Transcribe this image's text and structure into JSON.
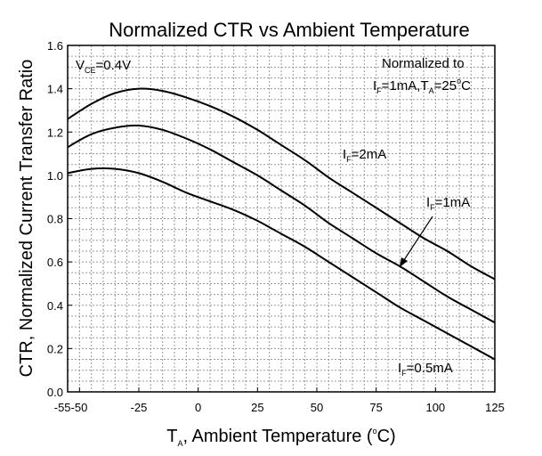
{
  "chart_data": {
    "type": "line",
    "title": "Normalized CTR vs Ambient Temperature",
    "xlabel": {
      "pre": "T",
      "sub": "A",
      "mid": ", Ambient Temperature (",
      "sup": "o",
      "post": "C)"
    },
    "ylabel": "CTR, Normalized Current Transfer Ratio",
    "xlim": [
      -55,
      125
    ],
    "ylim": [
      0,
      1.6
    ],
    "x_ticks": [
      -50,
      -25,
      0,
      25,
      50,
      75,
      100,
      125
    ],
    "x_tick_labels": [
      "-55-50",
      "-25",
      "0",
      "25",
      "50",
      "75",
      "100",
      "125"
    ],
    "y_ticks": [
      0,
      0.2,
      0.4,
      0.6,
      0.8,
      1.0,
      1.2,
      1.4,
      1.6
    ],
    "y_tick_labels": [
      "0.0",
      "0.2",
      "0.4",
      "0.6",
      "0.8",
      "1.0",
      "1.2",
      "1.4",
      "1.6"
    ],
    "grid": true,
    "annotations": {
      "vce": {
        "pre": "V",
        "sub": "CE",
        "post": "=0.4V"
      },
      "norm_line1": "Normalized to",
      "norm_line2": {
        "p1": "I",
        "s1": "F",
        "p2": "=1mA,T",
        "s2": "A",
        "p3": "=25",
        "sup": "o",
        "p4": "C"
      }
    },
    "series": [
      {
        "name": "I_F=2mA",
        "label": {
          "pre": "I",
          "sub": "F",
          "post": "=2mA"
        },
        "x": [
          -55,
          -45,
          -35,
          -25,
          -15,
          -5,
          5,
          15,
          25,
          35,
          45,
          55,
          65,
          75,
          85,
          95,
          105,
          115,
          125
        ],
        "values": [
          1.26,
          1.33,
          1.38,
          1.4,
          1.39,
          1.36,
          1.32,
          1.27,
          1.21,
          1.14,
          1.07,
          0.99,
          0.92,
          0.85,
          0.78,
          0.71,
          0.65,
          0.58,
          0.52
        ]
      },
      {
        "name": "I_F=1mA",
        "label": {
          "pre": "I",
          "sub": "F",
          "post": "=1mA"
        },
        "x": [
          -55,
          -45,
          -35,
          -25,
          -15,
          -5,
          5,
          15,
          25,
          35,
          45,
          55,
          65,
          75,
          85,
          95,
          105,
          115,
          125
        ],
        "values": [
          1.13,
          1.19,
          1.22,
          1.23,
          1.21,
          1.17,
          1.12,
          1.06,
          1.0,
          0.93,
          0.86,
          0.78,
          0.71,
          0.64,
          0.58,
          0.51,
          0.44,
          0.38,
          0.32
        ]
      },
      {
        "name": "I_F=0.5mA",
        "label": {
          "pre": "I",
          "sub": "F",
          "post": "=0.5mA"
        },
        "x": [
          -55,
          -45,
          -35,
          -25,
          -15,
          -5,
          5,
          15,
          25,
          35,
          45,
          55,
          65,
          75,
          85,
          95,
          105,
          115,
          125
        ],
        "values": [
          1.01,
          1.03,
          1.03,
          1.01,
          0.97,
          0.92,
          0.88,
          0.84,
          0.79,
          0.73,
          0.67,
          0.6,
          0.53,
          0.46,
          0.39,
          0.33,
          0.27,
          0.21,
          0.15
        ]
      }
    ]
  }
}
